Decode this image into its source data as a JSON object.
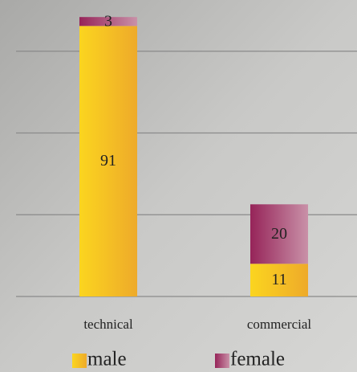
{
  "chart_data": {
    "type": "stacked-bar",
    "categories": [
      "technical",
      "commercial"
    ],
    "series": [
      {
        "name": "male",
        "color": "#f5c21b",
        "values": [
          91,
          11
        ]
      },
      {
        "name": "female",
        "color": "#9c2d62",
        "values": [
          3,
          20
        ]
      }
    ],
    "ylim": [
      0,
      100
    ],
    "yticks": [
      0,
      27.5,
      55,
      82.5
    ],
    "grid": true
  }
}
